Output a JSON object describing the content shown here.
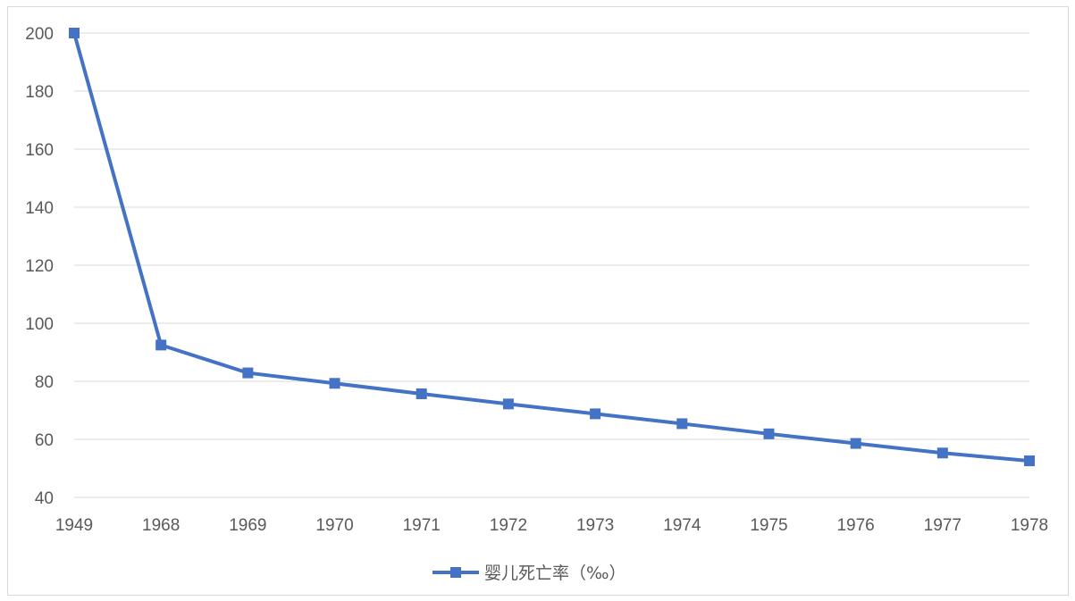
{
  "chart_data": {
    "type": "line",
    "title": "",
    "xlabel": "",
    "ylabel": "",
    "categories": [
      "1949",
      "1968",
      "1969",
      "1970",
      "1971",
      "1972",
      "1973",
      "1974",
      "1975",
      "1976",
      "1977",
      "1978"
    ],
    "series": [
      {
        "name": "婴儿死亡率（‰）",
        "values": [
          200,
          92.5,
          82.9,
          79.3,
          75.7,
          72.2,
          68.8,
          65.4,
          61.9,
          58.6,
          55.3,
          52.6
        ],
        "color": "#4472C4"
      }
    ],
    "ylim": [
      40,
      200
    ],
    "yticks": [
      40,
      60,
      80,
      100,
      120,
      140,
      160,
      180,
      200
    ],
    "grid": true,
    "legend_position": "bottom"
  }
}
